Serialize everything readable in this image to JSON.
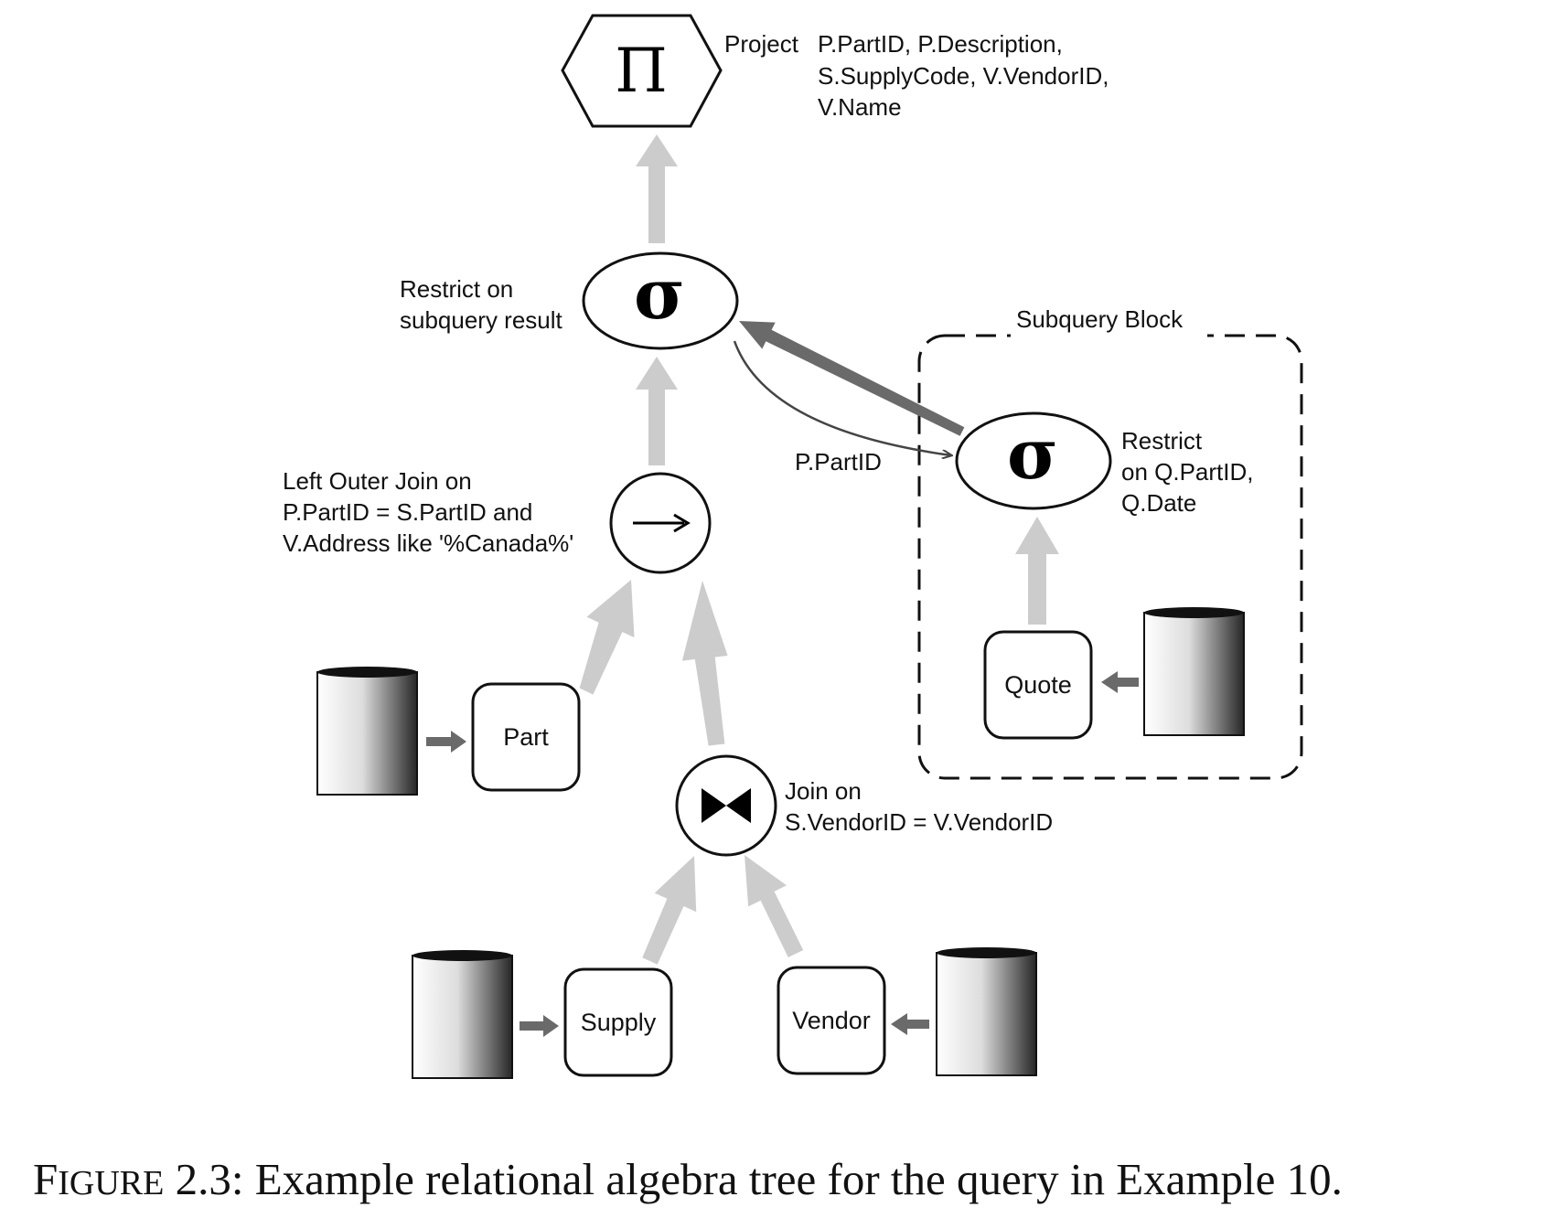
{
  "nodes": {
    "project": {
      "symbol": "Π",
      "label": "Project",
      "attributes": [
        "P.PartID, P.Description,",
        "S.SupplyCode, V.VendorID,",
        "V.Name"
      ]
    },
    "restrict_top": {
      "symbol": "σ",
      "label": [
        "Restrict on",
        "subquery result"
      ]
    },
    "left_outer_join": {
      "symbol": "→",
      "label": [
        "Left Outer Join on",
        "P.PartID = S.PartID and",
        "V.Address like '%Canada%'"
      ]
    },
    "join": {
      "symbol": "⋈",
      "label": [
        "Join on",
        "S.VendorID = V.VendorID"
      ]
    },
    "restrict_sub": {
      "symbol": "σ",
      "label": [
        "Restrict",
        "on Q.PartID,",
        "Q.Date"
      ]
    }
  },
  "tables": {
    "part": "Part",
    "supply": "Supply",
    "vendor": "Vendor",
    "quote": "Quote"
  },
  "subquery_block": {
    "label": "Subquery Block"
  },
  "correlation_label": "P.PartID",
  "caption": {
    "figure_word_first": "F",
    "figure_word_rest": "IGURE",
    "number": "2.3:",
    "text": "Example relational algebra tree for the query in Example 10."
  },
  "colors": {
    "flow_arrow": "#cccccc",
    "dark_arrow": "#6a6a6a",
    "stroke": "#111111"
  }
}
